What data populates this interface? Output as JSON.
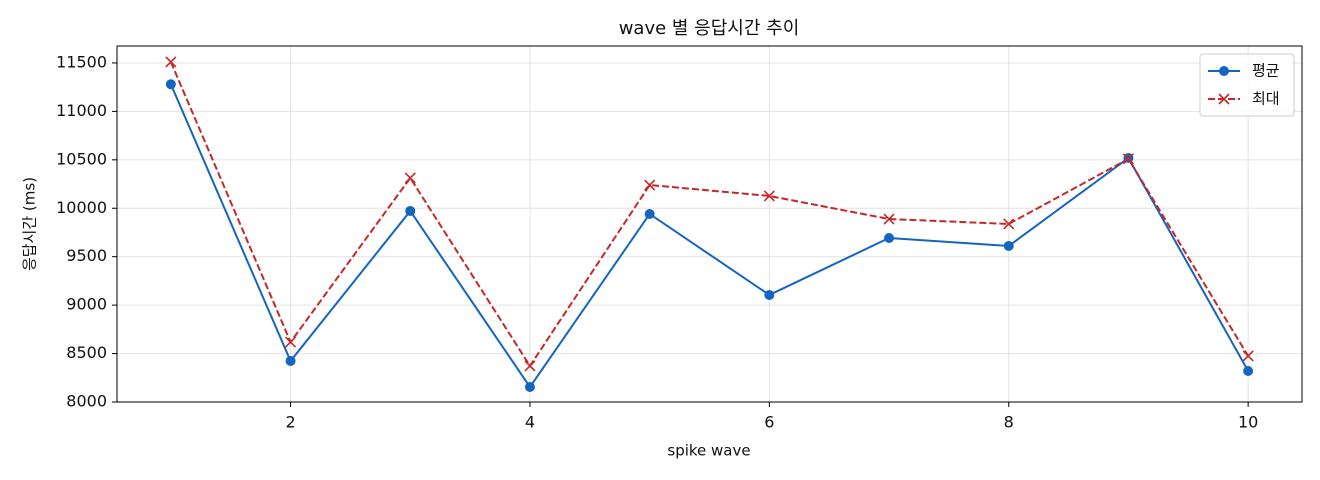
{
  "chart_data": {
    "type": "line",
    "title": "wave 별 응답시간 추이",
    "x_label": "spike wave",
    "y_label": "응답시간 (ms)",
    "x": [
      1,
      2,
      3,
      4,
      5,
      6,
      7,
      8,
      9,
      10
    ],
    "series": [
      {
        "name": "평균",
        "color": "#1565c0",
        "marker": "o",
        "linestyle": "solid",
        "values": [
          11280,
          8423,
          9972,
          8155,
          9941,
          9105,
          9693,
          9611,
          10519,
          8320
        ]
      },
      {
        "name": "최대",
        "color": "#c62828",
        "marker": "x",
        "linestyle": "dashed",
        "values": [
          11510,
          8619,
          10313,
          8372,
          10240,
          10127,
          9889,
          9838,
          10510,
          8475
        ]
      }
    ],
    "xlim": [
      0.55,
      10.45
    ],
    "ylim": [
      8000,
      11675
    ],
    "xticks": [
      2,
      4,
      6,
      8,
      10
    ],
    "yticks": [
      8000,
      8500,
      9000,
      9500,
      10000,
      10500,
      11000,
      11500
    ],
    "grid": true,
    "legend": "upper right"
  }
}
